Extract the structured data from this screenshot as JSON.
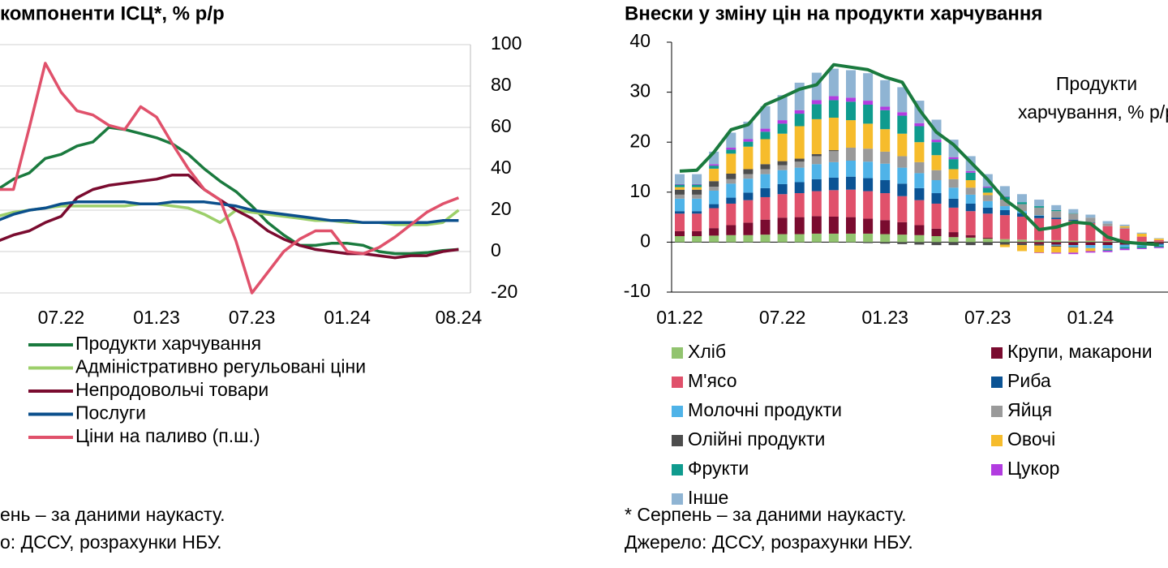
{
  "chart_data": [
    {
      "type": "line",
      "title": "компоненти ІСЦ*, % р/р",
      "categories": [
        null,
        null,
        null,
        null,
        "07.22",
        null,
        null,
        null,
        null,
        null,
        "01.23",
        null,
        null,
        null,
        null,
        null,
        "07.23",
        null,
        null,
        null,
        null,
        null,
        "01.24",
        null,
        null,
        null,
        null,
        null,
        null,
        "08.24"
      ],
      "ylim": [
        -20,
        100
      ],
      "yticks": [
        -20,
        0,
        20,
        40,
        60,
        80,
        100
      ],
      "grid": true,
      "series": [
        {
          "name": "Продукти харчування",
          "color": "#1a7a3e",
          "values": [
            30,
            35,
            38,
            45,
            47,
            51,
            53,
            60,
            59,
            57,
            55,
            52,
            47,
            40,
            34,
            29,
            22,
            14,
            8,
            3,
            3,
            4,
            4,
            3,
            0,
            -1,
            -1,
            -0.5,
            0.5,
            1
          ]
        },
        {
          "name": "Адміністративно регульовані ціни",
          "color": "#9ccf6a",
          "values": [
            17,
            19,
            20,
            21,
            22,
            22,
            22,
            22,
            22,
            23,
            23,
            22,
            21,
            18,
            14,
            20,
            19,
            18,
            17,
            16,
            15,
            15,
            14,
            14,
            14,
            13,
            13,
            13,
            14,
            20
          ]
        },
        {
          "name": "Непродовольчі товари",
          "color": "#7a0b2f",
          "values": [
            5,
            8,
            10,
            14,
            17,
            26,
            30,
            32,
            33,
            34,
            35,
            37,
            37,
            30,
            25,
            20,
            16,
            10,
            6,
            3,
            1,
            0,
            -1,
            -1,
            -2,
            -3,
            -2,
            -2,
            0,
            1
          ]
        },
        {
          "name": "Послуги",
          "color": "#0b4f8c",
          "values": [
            15,
            18,
            20,
            21,
            23,
            24,
            24,
            24,
            24,
            23,
            23,
            24,
            24,
            24,
            23,
            22,
            20,
            19,
            18,
            17,
            16,
            15,
            15,
            14,
            14,
            14,
            14,
            14,
            15,
            15
          ]
        },
        {
          "name": "Ціни на паливо (п.ш.)",
          "color": "#e0516b",
          "values": [
            30,
            30,
            60,
            91,
            77,
            68,
            66,
            61,
            59,
            70,
            65,
            52,
            40,
            30,
            25,
            5,
            -20,
            -10,
            0,
            6,
            10,
            10,
            0,
            -1,
            2,
            7,
            13,
            19,
            23,
            26
          ]
        }
      ],
      "notes": [
        "ень – за даними наукасту.",
        "о: ДССУ, розрахунки НБУ."
      ]
    },
    {
      "type": "stacked_bar",
      "title": "Внески у зміну цін на продукти харчування",
      "categories": [
        "01.22",
        null,
        null,
        null,
        null,
        null,
        "07.22",
        null,
        null,
        null,
        null,
        null,
        "01.23",
        null,
        null,
        null,
        null,
        null,
        "07.23",
        null,
        null,
        null,
        null,
        null,
        "01.24",
        null,
        null,
        null,
        null
      ],
      "ylim": [
        -10,
        40
      ],
      "yticks": [
        -10,
        0,
        10,
        20,
        30,
        40
      ],
      "series": [
        {
          "name": "Хліб",
          "color": "#92c46f",
          "values": [
            1.2,
            1.2,
            1.3,
            1.4,
            1.4,
            1.5,
            1.6,
            1.6,
            1.7,
            1.7,
            1.7,
            1.7,
            1.6,
            1.5,
            1.4,
            1.2,
            1.0,
            0.9,
            0.7,
            0.6,
            0.5,
            0.4,
            0.4,
            0.3,
            0.3,
            0.2,
            0.2,
            0.1,
            0.1
          ]
        },
        {
          "name": "Крупи, макарони",
          "color": "#7a0b2f",
          "values": [
            1.0,
            1.0,
            1.5,
            2.0,
            2.5,
            3.0,
            3.3,
            3.4,
            3.5,
            3.4,
            3.3,
            3.0,
            2.8,
            2.5,
            2.0,
            1.5,
            1.0,
            0.5,
            0.2,
            0,
            -0.2,
            -0.4,
            -0.5,
            -0.6,
            -0.6,
            -0.6,
            -0.5,
            -0.4,
            -0.3
          ]
        },
        {
          "name": "М'ясо",
          "color": "#e0516b",
          "values": [
            3.5,
            3.5,
            4.0,
            4.3,
            4.5,
            4.5,
            4.7,
            4.8,
            5.0,
            5.3,
            5.5,
            5.5,
            5.4,
            5.2,
            5.0,
            5.0,
            4.9,
            4.8,
            4.8,
            4.8,
            4.6,
            4.4,
            4.2,
            4.0,
            3.5,
            3.0,
            2.5,
            1.0,
            0.3
          ]
        },
        {
          "name": "Риба",
          "color": "#0b5394",
          "values": [
            0.5,
            0.5,
            0.8,
            1.2,
            1.5,
            1.8,
            2.0,
            2.2,
            2.4,
            2.5,
            2.6,
            2.6,
            2.6,
            2.5,
            2.4,
            2.1,
            1.8,
            1.5,
            1.2,
            1.0,
            0.7,
            0.5,
            0.3,
            0.2,
            0.1,
            0,
            0,
            -0.1,
            -0.2
          ]
        },
        {
          "name": "Молочні продукти",
          "color": "#4fb3e8",
          "values": [
            2.5,
            2.5,
            2.7,
            2.8,
            2.8,
            2.8,
            2.8,
            2.9,
            3.0,
            3.1,
            3.2,
            3.3,
            3.3,
            3.2,
            3.0,
            2.6,
            2.2,
            1.8,
            1.3,
            0.8,
            0.4,
            0.1,
            -0.2,
            -0.4,
            -0.6,
            -0.7,
            -0.5,
            -0.3,
            -0.2
          ]
        },
        {
          "name": "Яйця",
          "color": "#9a9a9a",
          "values": [
            0.8,
            0.8,
            0.8,
            0.9,
            0.9,
            1.0,
            1.0,
            1.2,
            1.6,
            2.2,
            2.6,
            2.6,
            2.4,
            2.3,
            2.2,
            2.0,
            1.7,
            1.4,
            1.2,
            1.3,
            1.4,
            1.5,
            1.3,
            1.2,
            1.0,
            0.5,
            0.2,
            0,
            0
          ]
        },
        {
          "name": "Олійні продукти",
          "color": "#4d4d4d",
          "values": [
            1.0,
            1.0,
            1.1,
            1.1,
            1.0,
            1.0,
            0.8,
            0.6,
            0.4,
            0.2,
            0,
            -0.2,
            -0.3,
            -0.4,
            -0.5,
            -0.6,
            -0.6,
            -0.6,
            -0.6,
            -0.5,
            -0.4,
            -0.3,
            -0.2,
            -0.1,
            0,
            0,
            0,
            0,
            0
          ]
        },
        {
          "name": "Овочі",
          "color": "#f6bc2c",
          "values": [
            0.5,
            0.5,
            2.5,
            4.0,
            4.5,
            5.0,
            5.5,
            6.5,
            7.0,
            6.5,
            5.5,
            5.0,
            4.5,
            4.5,
            4.0,
            3.0,
            2.0,
            1.5,
            0.5,
            -0.5,
            -1.2,
            -1.4,
            -1.2,
            -1.0,
            -0.6,
            -0.2,
            0.3,
            0.6,
            0.3
          ]
        },
        {
          "name": "Фрукти",
          "color": "#0f9b8e",
          "values": [
            0.5,
            0.5,
            0.6,
            0.8,
            1.0,
            1.5,
            2.0,
            2.5,
            3.0,
            3.5,
            3.7,
            3.8,
            3.8,
            3.6,
            3.2,
            2.6,
            2.0,
            1.5,
            1.0,
            0.6,
            0.4,
            0.3,
            0.2,
            0.1,
            0,
            -0.2,
            -0.3,
            -0.4,
            -0.3
          ]
        },
        {
          "name": "Цукор",
          "color": "#b23ce0",
          "values": [
            0.1,
            0.1,
            0.3,
            0.4,
            0.5,
            0.6,
            0.7,
            0.7,
            0.8,
            0.8,
            0.8,
            0.8,
            0.7,
            0.7,
            0.6,
            0.5,
            0.4,
            0.3,
            0.2,
            0.1,
            0,
            -0.1,
            -0.2,
            -0.3,
            -0.3,
            -0.3,
            -0.3,
            -0.2,
            -0.2
          ]
        },
        {
          "name": "Інше",
          "color": "#8fb4d3",
          "values": [
            2.0,
            2.0,
            2.5,
            3.0,
            3.5,
            4.5,
            5.0,
            5.5,
            5.5,
            5.5,
            5.5,
            5.5,
            5.3,
            5.0,
            4.5,
            4.0,
            3.5,
            3.0,
            2.5,
            2.0,
            1.6,
            1.3,
            1.0,
            0.8,
            0.6,
            0.5,
            0.3,
            0.2,
            0.1
          ]
        }
      ],
      "line": {
        "color": "#1a7a3e",
        "values": [
          14.2,
          14.4,
          18,
          22.5,
          23.5,
          27.5,
          29,
          30.6,
          31.5,
          35.5,
          35,
          34.5,
          33,
          32,
          26.5,
          22,
          19.5,
          16,
          12.5,
          8.5,
          6,
          2.5,
          3,
          4,
          3.7,
          1,
          0,
          -0.3,
          -0.5
        ]
      },
      "annotation": [
        "Продукти",
        "харчування, % р/р"
      ],
      "notes": [
        "* Серпень – за даними наукасту.",
        "Джерело: ДССУ, розрахунки НБУ."
      ]
    }
  ]
}
